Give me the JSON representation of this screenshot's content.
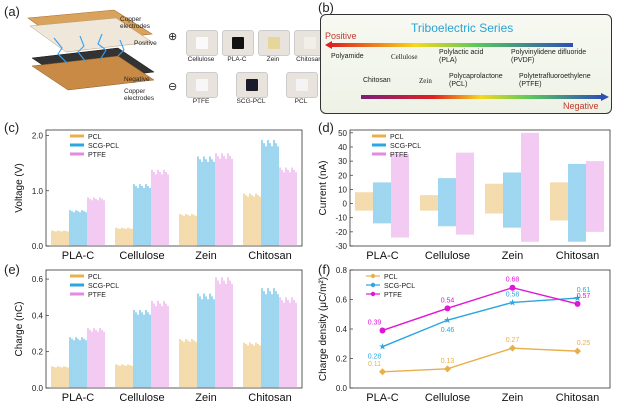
{
  "panels": {
    "a": "(a)",
    "b": "(b)",
    "c": "(c)",
    "d": "(d)",
    "e": "(e)",
    "f": "(f)"
  },
  "device": {
    "labels": {
      "copper_top": "Copper electrodes",
      "positive": "Positive",
      "negative": "Negative",
      "copper_bottom": "Copper electrodes"
    },
    "plus": "⊕",
    "minus": "⊖",
    "samples_top": [
      "Cellulose",
      "PLA-C",
      "Zein",
      "Chitosan"
    ],
    "samples_bottom": [
      "PTFE",
      "SCG-PCL",
      "PCL"
    ]
  },
  "tribo": {
    "title": "Triboelectric Series",
    "positive": "Positive",
    "negative": "Negative",
    "positive_row": [
      "Polyamide",
      "Cellulose",
      "Polylactic acid (PLA)",
      "Polyvinylidene difluoride (PVDF)"
    ],
    "negative_row": [
      "Chitosan",
      "Zein",
      "Polycaprolactone (PCL)",
      "Polytetrafluoroethylene (PTFE)"
    ],
    "colors": {
      "title": "#29a3d6",
      "positive": "#c0392b",
      "negative": "#c0392b"
    }
  },
  "chart_data": [
    {
      "panel": "c",
      "type": "bar",
      "ylabel": "Voltage (V)",
      "ylim": [
        0,
        2.1
      ],
      "yticks": [
        "0.0",
        "1.0",
        "2.0"
      ],
      "categories": [
        "PLA-C",
        "Cellulose",
        "Zein",
        "Chitosan"
      ],
      "series": [
        {
          "name": "PCL",
          "color": "#e8b04b",
          "values": [
            0.28,
            0.33,
            0.58,
            0.95
          ]
        },
        {
          "name": "SCG-PCL",
          "color": "#2aa6e0",
          "values": [
            0.65,
            1.12,
            1.62,
            1.92
          ]
        },
        {
          "name": "PTFE",
          "color": "#e38be3",
          "values": [
            0.88,
            1.38,
            1.68,
            1.42
          ]
        }
      ]
    },
    {
      "panel": "d",
      "type": "bar",
      "ylabel": "Current (nA)",
      "ylim": [
        -30,
        52
      ],
      "yticks": [
        "50",
        "40",
        "30",
        "20",
        "10",
        "0",
        "-10",
        "-20",
        "-30"
      ],
      "categories": [
        "PLA-C",
        "Cellulose",
        "Zein",
        "Chitosan"
      ],
      "series": [
        {
          "name": "PCL",
          "color": "#e8b04b",
          "pos": [
            8,
            6,
            14,
            15
          ],
          "neg": [
            -5,
            -5,
            -7,
            -12
          ]
        },
        {
          "name": "SCG-PCL",
          "color": "#2aa6e0",
          "pos": [
            15,
            18,
            22,
            28
          ],
          "neg": [
            -14,
            -16,
            -17,
            -27
          ]
        },
        {
          "name": "PTFE",
          "color": "#e38be3",
          "pos": [
            35,
            36,
            50,
            30
          ],
          "neg": [
            -24,
            -22,
            -27,
            -20
          ]
        }
      ]
    },
    {
      "panel": "e",
      "type": "bar",
      "ylabel": "Charge (nC)",
      "ylim": [
        0,
        0.65
      ],
      "yticks": [
        "0.0",
        "0.2",
        "0.4",
        "0.6"
      ],
      "categories": [
        "PLA-C",
        "Cellulose",
        "Zein",
        "Chitosan"
      ],
      "series": [
        {
          "name": "PCL",
          "color": "#e8b04b",
          "values": [
            0.12,
            0.13,
            0.27,
            0.25
          ]
        },
        {
          "name": "SCG-PCL",
          "color": "#2aa6e0",
          "values": [
            0.28,
            0.43,
            0.52,
            0.55
          ]
        },
        {
          "name": "PTFE",
          "color": "#e38be3",
          "values": [
            0.33,
            0.48,
            0.61,
            0.5
          ]
        }
      ]
    },
    {
      "panel": "f",
      "type": "line",
      "ylabel": "Charge density (μC/m²)",
      "ylim": [
        0,
        0.8
      ],
      "yticks": [
        "0.0",
        "0.2",
        "0.4",
        "0.6",
        "0.8"
      ],
      "categories": [
        "PLA-C",
        "Cellulose",
        "Zein",
        "Chitosan"
      ],
      "series": [
        {
          "name": "PCL",
          "color": "#e8b04b",
          "marker": "diamond",
          "values": [
            0.11,
            0.13,
            0.27,
            0.25
          ],
          "labels": [
            "0.11",
            "0.13",
            "0.27",
            "0.25"
          ]
        },
        {
          "name": "SCG-PCL",
          "color": "#2aa6e0",
          "marker": "star",
          "values": [
            0.28,
            0.46,
            0.58,
            0.61
          ],
          "labels": [
            "0.28",
            "0.46",
            "0.58",
            "0.61"
          ]
        },
        {
          "name": "PTFE",
          "color": "#e016d6",
          "marker": "circle",
          "values": [
            0.39,
            0.54,
            0.68,
            0.57
          ],
          "labels": [
            "0.39",
            "0.54",
            "0.68",
            "0.57"
          ]
        }
      ]
    }
  ]
}
